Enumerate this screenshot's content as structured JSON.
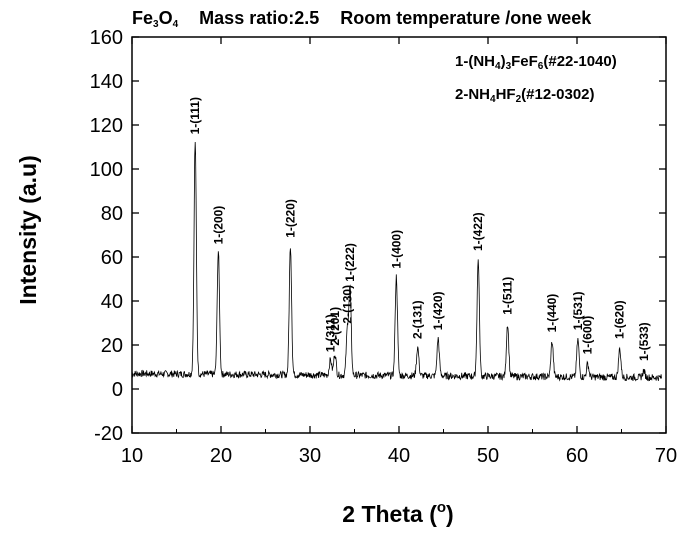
{
  "chart_data": {
    "type": "line",
    "title_parts": {
      "compound": "Fe3O4",
      "mass_ratio": "Mass ratio:2.5",
      "condition": "Room temperature /one week"
    },
    "xlabel": "2 Theta (",
    "xlabel_unit": "o",
    "xlabel_close": ")",
    "ylabel": "Intensity (a.u)",
    "xlim": [
      10,
      70
    ],
    "ylim": [
      -20,
      160
    ],
    "xticks": [
      10,
      20,
      30,
      40,
      50,
      60,
      70
    ],
    "yticks": [
      -20,
      0,
      20,
      40,
      60,
      80,
      100,
      120,
      140,
      160
    ],
    "legend": [
      "1-(NH4)3FeF6(#22-1040)",
      "2-NH4HF2(#12-0302)"
    ],
    "baseline": 7,
    "peaks": [
      {
        "x": 17.1,
        "y": 113,
        "label": "1-(111)"
      },
      {
        "x": 19.7,
        "y": 63,
        "label": "1-(200)"
      },
      {
        "x": 27.8,
        "y": 66,
        "label": "1-(220)"
      },
      {
        "x": 32.3,
        "y": 14,
        "label": "1-(311)"
      },
      {
        "x": 32.8,
        "y": 17,
        "label": "2-(201)"
      },
      {
        "x": 34.2,
        "y": 27,
        "label": "2-(130)"
      },
      {
        "x": 34.5,
        "y": 46,
        "label": "1-(222)"
      },
      {
        "x": 39.7,
        "y": 52,
        "label": "1-(400)"
      },
      {
        "x": 42.1,
        "y": 20,
        "label": "2-(131)"
      },
      {
        "x": 44.4,
        "y": 24,
        "label": "1-(420)"
      },
      {
        "x": 48.9,
        "y": 60,
        "label": "1-(422)"
      },
      {
        "x": 52.2,
        "y": 31,
        "label": "1-(511)"
      },
      {
        "x": 57.2,
        "y": 23,
        "label": "1-(440)"
      },
      {
        "x": 60.1,
        "y": 24,
        "label": "1-(531)"
      },
      {
        "x": 61.2,
        "y": 13,
        "label": "1-(600)"
      },
      {
        "x": 64.8,
        "y": 20,
        "label": "1-(620)"
      },
      {
        "x": 67.5,
        "y": 10,
        "label": "1-(533)"
      }
    ],
    "grid": false,
    "colors": {
      "line": "#000000",
      "axis": "#000000",
      "background": "#ffffff"
    }
  }
}
